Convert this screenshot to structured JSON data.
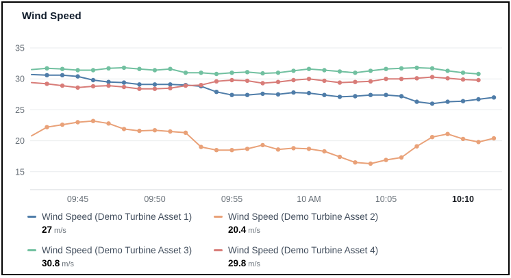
{
  "widget": {
    "title": "Wind Speed"
  },
  "chart_data": {
    "type": "line",
    "title": "Wind Speed",
    "xlabel": "",
    "ylabel": "",
    "unit": "m/s",
    "grid": true,
    "legend_position": "bottom",
    "ylim": [
      12,
      35
    ],
    "y_ticks": [
      35,
      30,
      25,
      20,
      15
    ],
    "x_start": "09:42",
    "x_interval_minutes": 1,
    "x_ticks": [
      {
        "t": 3,
        "label": "09:45",
        "bold": false
      },
      {
        "t": 8,
        "label": "09:50",
        "bold": false
      },
      {
        "t": 13,
        "label": "09:55",
        "bold": false
      },
      {
        "t": 18,
        "label": "10 AM",
        "bold": false
      },
      {
        "t": 23,
        "label": "10:05",
        "bold": false
      },
      {
        "t": 28,
        "label": "10:10",
        "bold": true
      }
    ],
    "series": [
      {
        "name": "Wind Speed (Demo Turbine Asset 1)",
        "color": "#4e7ca8",
        "current_value": "27",
        "unit": "m/s",
        "values": [
          30.7,
          30.6,
          30.6,
          30.4,
          29.8,
          29.5,
          29.4,
          29.1,
          29.1,
          29.1,
          29.0,
          28.8,
          27.9,
          27.4,
          27.4,
          27.6,
          27.5,
          27.8,
          27.7,
          27.4,
          27.1,
          27.2,
          27.4,
          27.4,
          27.2,
          26.3,
          26.0,
          26.3,
          26.4,
          26.7,
          27.0
        ]
      },
      {
        "name": "Wind Speed (Demo Turbine Asset 2)",
        "color": "#e9a178",
        "current_value": "20.4",
        "unit": "m/s",
        "values": [
          20.8,
          22.2,
          22.6,
          23.0,
          23.2,
          22.8,
          21.9,
          21.6,
          21.7,
          21.5,
          21.3,
          19.0,
          18.5,
          18.5,
          18.7,
          19.3,
          18.6,
          18.8,
          18.7,
          18.3,
          17.4,
          16.5,
          16.3,
          16.9,
          17.3,
          19.1,
          20.6,
          21.1,
          20.3,
          19.8,
          20.4
        ]
      },
      {
        "name": "Wind Speed (Demo Turbine Asset 3)",
        "color": "#71c0a0",
        "current_value": "30.8",
        "unit": "m/s",
        "values": [
          31.5,
          31.7,
          31.6,
          31.4,
          31.4,
          31.7,
          31.8,
          31.6,
          31.4,
          31.6,
          31.0,
          31.0,
          30.8,
          31.0,
          31.1,
          30.9,
          31.0,
          31.3,
          31.6,
          31.4,
          31.2,
          31.0,
          31.3,
          31.6,
          31.7,
          31.8,
          31.7,
          31.3,
          31.0,
          30.8
        ]
      },
      {
        "name": "Wind Speed (Demo Turbine Asset 4)",
        "color": "#d87c78",
        "current_value": "29.8",
        "unit": "m/s",
        "values": [
          29.4,
          29.2,
          28.9,
          28.6,
          28.8,
          28.9,
          28.7,
          28.4,
          28.4,
          28.5,
          28.9,
          29.0,
          29.6,
          29.8,
          29.7,
          29.3,
          29.5,
          29.8,
          30.0,
          29.7,
          29.4,
          29.5,
          29.6,
          30.0,
          30.0,
          30.1,
          30.3,
          30.1,
          29.9,
          29.8
        ]
      }
    ],
    "colors": {
      "grid_line": "#e9ebed",
      "axis_line": "#d4d9de",
      "tick_label": "#687078",
      "tick_label_bold": "#16191f",
      "title_text": "#0f1b2a",
      "border": "#000000"
    }
  }
}
